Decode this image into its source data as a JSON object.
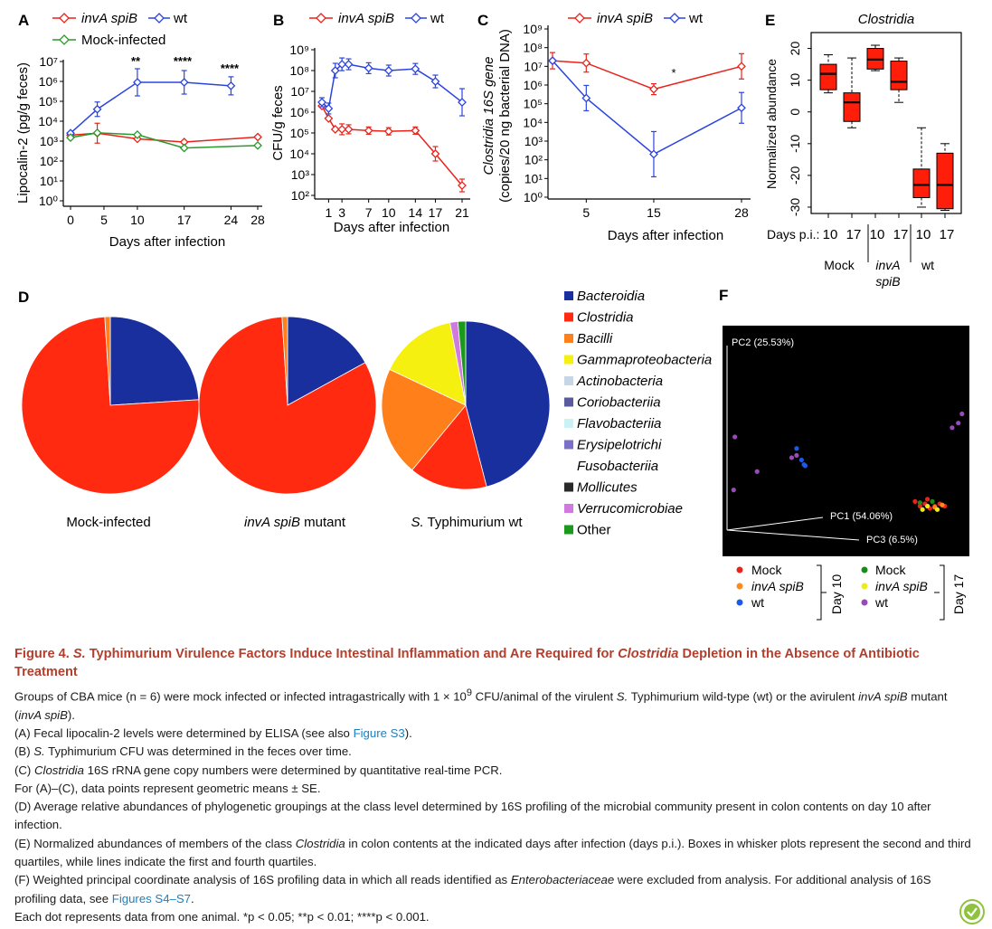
{
  "colors": {
    "invA": "#e8231a",
    "wt": "#2b44e0",
    "mock": "#2a9a2a",
    "caption_title": "#b23f2e",
    "link": "#1e7fbf"
  },
  "panelA": {
    "letter": "A",
    "legend": [
      "invA spiB",
      "wt",
      "Mock-infected"
    ],
    "ylabel": "Lipocalin-2 (pg/g feces)",
    "xlabel": "Days after infection",
    "yticks": [
      "10⁰",
      "10¹",
      "10²",
      "10³",
      "10⁴",
      "10⁵",
      "10⁶",
      "10⁷"
    ],
    "xticks": [
      "0",
      "5",
      "10",
      "17",
      "24",
      "28"
    ],
    "sig": [
      "**",
      "****",
      "****"
    ]
  },
  "panelB": {
    "letter": "B",
    "legend": [
      "invA spiB",
      "wt"
    ],
    "ylabel": "CFU/g feces",
    "xlabel": "Days after infection",
    "yticks": [
      "10²",
      "10³",
      "10⁴",
      "10⁵",
      "10⁶",
      "10⁷",
      "10⁸",
      "10⁹"
    ],
    "xticks": [
      "1",
      "3",
      "7",
      "10",
      "14",
      "17",
      "21"
    ]
  },
  "panelC": {
    "letter": "C",
    "legend": [
      "invA spiB",
      "wt"
    ],
    "ylabel_line1": "Clostridia 16S gene",
    "ylabel_line2": "(copies/20 ng bacterial DNA)",
    "xlabel": "Days after infection",
    "yticks": [
      "10⁰",
      "10¹",
      "10²",
      "10³",
      "10⁴",
      "10⁵",
      "10⁶",
      "10⁷",
      "10⁸",
      "10⁹"
    ],
    "xticks": [
      "5",
      "15",
      "28"
    ],
    "sig": "*"
  },
  "panelE": {
    "letter": "E",
    "title": "Clostridia",
    "ylabel": "Normalized abundance",
    "yticks": [
      "-30",
      "-20",
      "-10",
      "0",
      "10",
      "20"
    ],
    "days_label": "Days p.i.:",
    "days": [
      "10",
      "17",
      "10",
      "17",
      "10",
      "17"
    ],
    "groups": [
      "Mock",
      "invA\nspiB",
      "wt"
    ],
    "group_line1": [
      "Mock",
      "invA",
      "wt"
    ],
    "group_line2": [
      "",
      "spiB",
      ""
    ]
  },
  "panelD": {
    "letter": "D",
    "pie_labels": [
      "Mock-infected",
      "invA spiB mutant",
      "S. Typhimurium wt"
    ],
    "legend": [
      {
        "name": "Bacteroidia",
        "color": "#1a2f9e",
        "italic": true
      },
      {
        "name": "Clostridia",
        "color": "#ff2a10",
        "italic": true
      },
      {
        "name": "Bacilli",
        "color": "#ff7f1a",
        "italic": true
      },
      {
        "name": "Gammaproteobacteria",
        "color": "#f5f010",
        "italic": true
      },
      {
        "name": "Actinobacteria",
        "color": "#c7d6e6",
        "italic": true
      },
      {
        "name": "Coriobacteriia",
        "color": "#5a5a9e",
        "italic": true
      },
      {
        "name": "Flavobacteriia",
        "color": "#c9f2f5",
        "italic": true
      },
      {
        "name": "Erysipelotrichi",
        "color": "#7b70c8",
        "italic": true
      },
      {
        "name": "Fusobacteriia",
        "color": "",
        "italic": true
      },
      {
        "name": "Mollicutes",
        "color": "#2a2a2a",
        "italic": true
      },
      {
        "name": "Verrucomicrobiae",
        "color": "#d07ae0",
        "italic": true
      },
      {
        "name": "Other",
        "color": "#1a9a1a",
        "italic": false
      }
    ]
  },
  "panelF": {
    "letter": "F",
    "axis_labels": [
      "PC2 (25.53%)",
      "PC1 (54.06%)",
      "PC3 (6.5%)"
    ],
    "legend_day10": [
      {
        "name": "Mock",
        "color": "#e8231a"
      },
      {
        "name": "invA spiB",
        "color": "#ff8a1a"
      },
      {
        "name": "wt",
        "color": "#1a5ae8"
      }
    ],
    "legend_day17": [
      {
        "name": "Mock",
        "color": "#1a8a1a"
      },
      {
        "name": "invA spiB",
        "color": "#ecec1a"
      },
      {
        "name": "wt",
        "color": "#9a4ab8"
      }
    ],
    "day10": "Day 10",
    "day17": "Day 17"
  },
  "chart_data": [
    {
      "type": "line",
      "title": "",
      "xlabel": "Days after infection",
      "ylabel": "Lipocalin-2 (pg/g feces)",
      "yscale": "log",
      "ylim": [
        1,
        10000000
      ],
      "xlim": [
        0,
        28
      ],
      "series": [
        {
          "name": "invA spiB",
          "x": [
            0,
            4,
            10,
            17,
            28
          ],
          "y": [
            2000,
            2500,
            1300,
            900,
            1600
          ]
        },
        {
          "name": "wt",
          "x": [
            0,
            4,
            10,
            17,
            24
          ],
          "y": [
            2500,
            40000,
            900000,
            900000,
            600000
          ]
        },
        {
          "name": "Mock-infected",
          "x": [
            0,
            4,
            10,
            17,
            28
          ],
          "y": [
            1500,
            2600,
            2100,
            450,
            600
          ]
        }
      ],
      "annotations": [
        "**",
        "****",
        "****"
      ]
    },
    {
      "type": "line",
      "title": "",
      "xlabel": "Days after infection",
      "ylabel": "CFU/g feces",
      "yscale": "log",
      "ylim": [
        100,
        1000000000
      ],
      "series": [
        {
          "name": "invA spiB",
          "x": [
            0,
            1,
            2,
            3,
            4,
            7,
            10,
            14,
            17,
            21
          ],
          "y": [
            2000000,
            500000,
            150000,
            150000,
            150000,
            130000,
            120000,
            130000,
            10000,
            300
          ]
        },
        {
          "name": "wt",
          "x": [
            0,
            1,
            2,
            3,
            4,
            7,
            10,
            14,
            17,
            21
          ],
          "y": [
            3000000,
            1500000,
            100000000,
            200000000,
            200000000,
            130000000,
            100000000,
            120000000,
            30000000,
            3000000
          ]
        }
      ]
    },
    {
      "type": "line",
      "title": "",
      "xlabel": "Days after infection",
      "ylabel": "Clostridia 16S gene (copies/20 ng bacterial DNA)",
      "yscale": "log",
      "ylim": [
        1,
        1000000000
      ],
      "series": [
        {
          "name": "invA spiB",
          "x": [
            0,
            5,
            15,
            28
          ],
          "y": [
            20000000,
            15000000,
            600000,
            10000000
          ]
        },
        {
          "name": "wt",
          "x": [
            0,
            5,
            15,
            28
          ],
          "y": [
            20000000,
            200000,
            200,
            60000
          ]
        }
      ],
      "annotations": [
        "*"
      ]
    },
    {
      "type": "box",
      "title": "Clostridia",
      "ylabel": "Normalized abundance",
      "ylim": [
        -32,
        25
      ],
      "categories": [
        "Mock 10",
        "Mock 17",
        "invA spiB 10",
        "invA spiB 17",
        "wt 10",
        "wt 17"
      ],
      "boxes": [
        {
          "min": 6,
          "q1": 7,
          "median": 12,
          "q3": 15,
          "max": 18
        },
        {
          "min": -5,
          "q1": -3,
          "median": 3,
          "q3": 6,
          "max": 17
        },
        {
          "min": 13,
          "q1": 13.5,
          "median": 16.5,
          "q3": 20,
          "max": 21
        },
        {
          "min": 3,
          "q1": 7,
          "median": 9.5,
          "q3": 16,
          "max": 17
        },
        {
          "min": -30,
          "q1": -27,
          "median": -23,
          "q3": -18,
          "max": -5
        },
        {
          "min": -31,
          "q1": -30.5,
          "median": -23,
          "q3": -13,
          "max": -10
        }
      ]
    },
    {
      "type": "pie",
      "title": "Mock-infected",
      "labels": [
        "Bacteroidia",
        "Clostridia",
        "Bacilli"
      ],
      "values": [
        24,
        75,
        1
      ]
    },
    {
      "type": "pie",
      "title": "invA spiB mutant",
      "labels": [
        "Bacteroidia",
        "Clostridia",
        "Bacilli"
      ],
      "values": [
        17,
        82,
        1
      ]
    },
    {
      "type": "pie",
      "title": "S. Typhimurium wt",
      "labels": [
        "Bacteroidia",
        "Clostridia",
        "Bacilli",
        "Gammaproteobacteria",
        "Verrucomicrobiae",
        "Other"
      ],
      "values": [
        46,
        15,
        21,
        15,
        1.5,
        1.5
      ]
    },
    {
      "type": "scatter",
      "title": "",
      "xlabel": "PC1 (54.06%)",
      "ylabel": "PC2 (25.53%)",
      "series": [
        {
          "name": "wt Day 10",
          "color": "#1a5ae8",
          "x": [
            0.3,
            0.32,
            0.33,
            0.335
          ],
          "y": [
            0.35,
            0.3,
            0.28,
            0.275
          ]
        },
        {
          "name": "wt Day 17",
          "color": "#9a4ab8",
          "x": [
            0.28,
            0.3,
            0.14,
            0.05,
            0.045,
            0.93,
            0.955,
            0.97
          ],
          "y": [
            0.31,
            0.32,
            0.25,
            0.4,
            0.17,
            0.44,
            0.46,
            0.5
          ]
        },
        {
          "name": "Mock/invA spiB cluster",
          "color": "#e8231a",
          "x": [
            0.78,
            0.8,
            0.82,
            0.84,
            0.86,
            0.88,
            0.9
          ],
          "y": [
            0.12,
            0.1,
            0.11,
            0.09,
            0.1,
            0.11,
            0.1
          ]
        }
      ]
    }
  ],
  "caption": {
    "title_pre": "Figure 4. ",
    "title_s": "S.",
    "title_mid": " Typhimurium Virulence Factors Induce Intestinal Inflammation and Are Required for ",
    "title_clost": "Clostridia",
    "title_post": " Depletion in the Absence of Antibiotic Treatment",
    "p1a": "Groups of CBA mice (n = 6) were mock infected or infected intragastrically with 1 × 10",
    "p1sup": "9",
    "p1b": " CFU/animal of the virulent ",
    "p1c": "S.",
    "p1d": " Typhimurium wild-type (wt) or the avirulent ",
    "p1e": "invA spiB",
    "p1f": " mutant (",
    "p1g": "invA spiB",
    "p1h": ").",
    "pA": "(A) Fecal lipocalin-2 levels were determined by ELISA (see also ",
    "pA_link": "Figure S3",
    "pA_end": ").",
    "pB_a": "(B) ",
    "pB_s": "S.",
    "pB_b": " Typhimurium CFU was determined in the feces over time.",
    "pC_a": "(C) ",
    "pC_c": "Clostridia",
    "pC_b": " 16S rRNA gene copy numbers were determined by quantitative real-time PCR.",
    "pAC": "For (A)–(C), data points represent geometric means ± SE.",
    "pD": "(D) Average relative abundances of phylogenetic groupings at the class level determined by 16S profiling of the microbial community present in colon contents on day 10 after infection.",
    "pE_a": "(E) Normalized abundances of members of the class ",
    "pE_c": "Clostridia",
    "pE_b": " in colon contents at the indicated days after infection (days p.i.). Boxes in whisker plots represent the second and third quartiles, while lines indicate the first and fourth quartiles.",
    "pF_a": "(F) Weighted principal coordinate analysis of 16S profiling data in which all reads identified as ",
    "pF_e": "Enterobacteriaceae",
    "pF_b": " were excluded from analysis. For additional analysis of 16S profiling data, see ",
    "pF_link": "Figures S4–S7",
    "pF_end": ".",
    "pDot": "Each dot represents data from one animal. *p < 0.05; **p < 0.01; ****p < 0.001."
  }
}
